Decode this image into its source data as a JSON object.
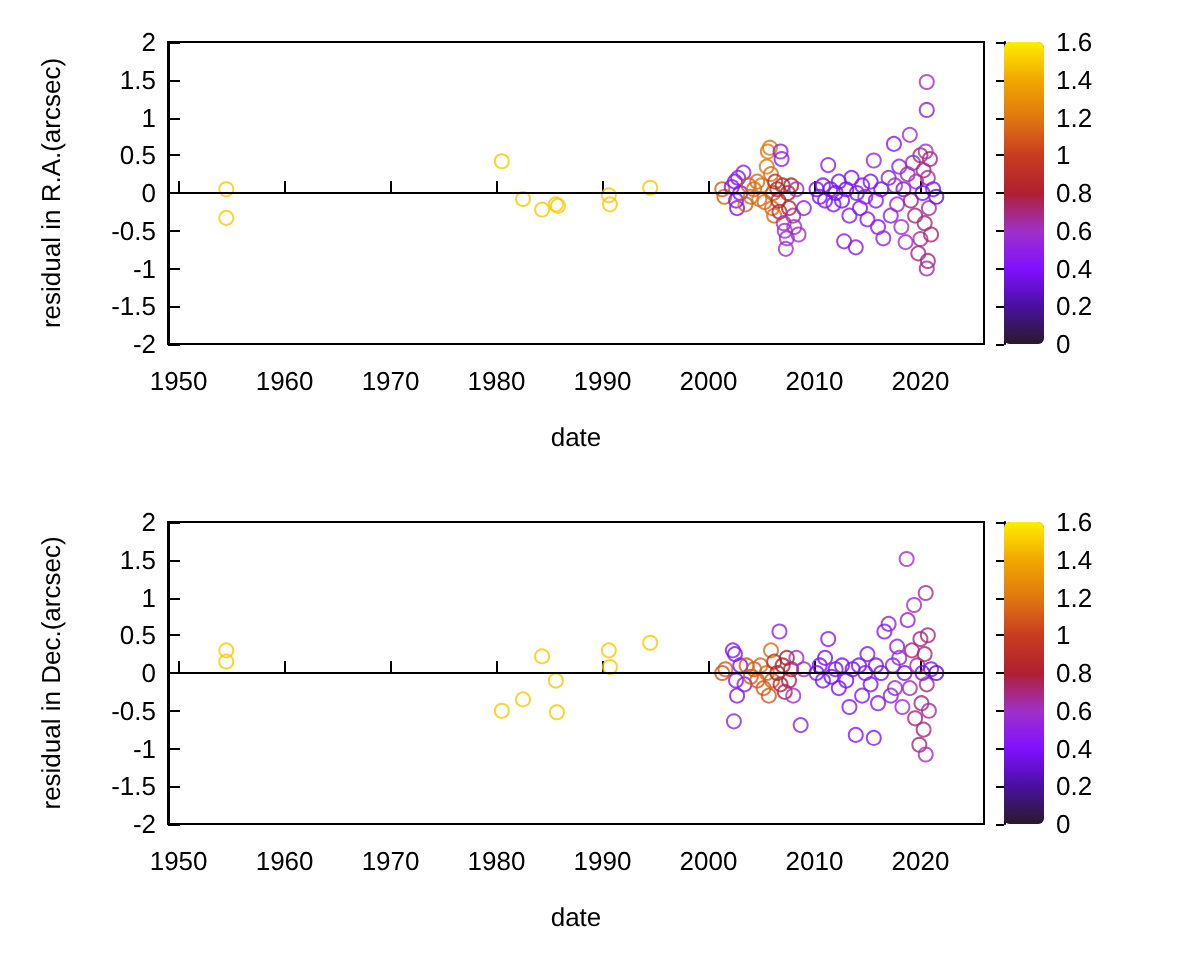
{
  "chart_data": [
    {
      "type": "scatter",
      "xlabel": "date",
      "ylabel": "residual in R.A.(arcsec)",
      "marker": "circle",
      "grid": false,
      "xlim": [
        1949,
        2026
      ],
      "xticks": [
        1950,
        1960,
        1970,
        1980,
        1990,
        2000,
        2010,
        2020
      ],
      "ylim": [
        -2,
        2
      ],
      "yticks": [
        -2,
        -1.5,
        -1,
        -0.5,
        0,
        0.5,
        1,
        1.5,
        2
      ],
      "clim": [
        0,
        1.6
      ],
      "cticks": [
        0,
        0.2,
        0.4,
        0.6,
        0.8,
        1,
        1.2,
        1.4,
        1.6
      ],
      "ref_lines": [
        {
          "axis": "y",
          "value": 0,
          "color": "#000000"
        }
      ],
      "series": [
        {
          "x": [
            1954.5,
            1954.5,
            1980.5,
            1982.5,
            1984.3,
            1985.6,
            1985.8,
            1990.6,
            1990.7,
            1994.5,
            2001.3,
            2001.5,
            2002.2,
            2002.5,
            2002.6,
            2002.7,
            2002.8,
            2003.0,
            2003.3,
            2003.5,
            2003.8,
            2004.0,
            2004.3,
            2004.6,
            2004.8,
            2005.0,
            2005.3,
            2005.5,
            2005.6,
            2005.8,
            2005.9,
            2006.0,
            2006.1,
            2006.2,
            2006.3,
            2006.5,
            2006.6,
            2006.7,
            2006.8,
            2006.9,
            2007.0,
            2007.1,
            2007.2,
            2007.3,
            2007.4,
            2007.5,
            2007.6,
            2007.8,
            2008.0,
            2008.1,
            2008.3,
            2008.5,
            2009.0,
            2010.2,
            2010.5,
            2010.8,
            2011.0,
            2011.3,
            2011.5,
            2011.8,
            2012.0,
            2012.3,
            2012.6,
            2012.8,
            2013.0,
            2013.3,
            2013.5,
            2013.9,
            2014.0,
            2014.3,
            2014.5,
            2014.8,
            2015.0,
            2015.3,
            2015.6,
            2015.8,
            2016.0,
            2016.3,
            2016.5,
            2017.0,
            2017.2,
            2017.5,
            2017.6,
            2017.8,
            2018.0,
            2018.2,
            2018.4,
            2018.6,
            2018.8,
            2019.0,
            2019.1,
            2019.3,
            2019.5,
            2019.6,
            2019.8,
            2020.0,
            2020.0,
            2020.2,
            2020.3,
            2020.4,
            2020.5,
            2020.6,
            2020.6,
            2020.6,
            2020.7,
            2020.7,
            2020.8,
            2020.9,
            2021.0,
            2021.2,
            2021.5
          ],
          "values": [
            0.05,
            -0.33,
            0.42,
            -0.08,
            -0.22,
            -0.15,
            -0.17,
            -0.03,
            -0.15,
            0.07,
            0.05,
            -0.05,
            0.08,
            0.15,
            -0.1,
            -0.2,
            0.2,
            0.0,
            0.27,
            -0.15,
            0.1,
            -0.05,
            0.05,
            0.15,
            -0.08,
            0.1,
            -0.12,
            0.35,
            0.55,
            0.6,
            0.25,
            -0.2,
            0.0,
            -0.3,
            0.15,
            0.05,
            -0.1,
            -0.25,
            0.55,
            0.45,
            0.1,
            -0.4,
            -0.5,
            -0.74,
            -0.6,
            0.0,
            -0.2,
            0.1,
            -0.3,
            -0.45,
            0.05,
            -0.55,
            -0.2,
            0.05,
            -0.05,
            0.1,
            -0.1,
            0.37,
            0.05,
            -0.15,
            0.0,
            0.15,
            -0.1,
            -0.64,
            0.05,
            -0.3,
            0.2,
            -0.72,
            0.0,
            -0.2,
            0.1,
            -0.05,
            -0.35,
            0.15,
            0.43,
            -0.1,
            -0.45,
            0.05,
            -0.6,
            0.2,
            -0.3,
            0.65,
            0.1,
            -0.15,
            0.35,
            -0.45,
            0.05,
            -0.65,
            0.25,
            0.77,
            -0.1,
            0.4,
            -0.3,
            0.15,
            -0.8,
            0.5,
            -0.61,
            0.0,
            0.3,
            -0.4,
            0.55,
            1.47,
            1.1,
            -1.0,
            -0.9,
            0.2,
            -0.2,
            0.45,
            -0.55,
            0.05,
            -0.05
          ],
          "cvalues": [
            1.5,
            1.5,
            1.5,
            1.5,
            1.5,
            1.5,
            1.5,
            1.5,
            1.5,
            1.5,
            1.1,
            1.1,
            0.45,
            0.4,
            0.4,
            0.4,
            0.45,
            0.4,
            0.5,
            1.1,
            1.1,
            1.15,
            1.15,
            1.15,
            1.15,
            1.2,
            1.15,
            1.2,
            1.2,
            1.2,
            1.15,
            1.15,
            1.1,
            1.15,
            0.9,
            0.85,
            0.85,
            0.85,
            0.5,
            0.5,
            0.85,
            0.6,
            0.6,
            0.6,
            0.6,
            0.85,
            0.85,
            0.8,
            0.65,
            0.6,
            0.6,
            0.6,
            0.5,
            0.4,
            0.4,
            0.4,
            0.4,
            0.45,
            0.35,
            0.4,
            0.35,
            0.4,
            0.4,
            0.45,
            0.35,
            0.45,
            0.4,
            0.45,
            0.4,
            0.4,
            0.45,
            0.5,
            0.45,
            0.4,
            0.55,
            0.45,
            0.45,
            0.4,
            0.5,
            0.5,
            0.5,
            0.45,
            0.6,
            0.55,
            0.5,
            0.6,
            0.4,
            0.6,
            0.65,
            0.6,
            0.7,
            0.55,
            0.7,
            0.6,
            0.7,
            0.7,
            0.65,
            0.4,
            0.7,
            0.7,
            0.6,
            0.6,
            0.5,
            0.65,
            0.7,
            0.65,
            0.65,
            0.7,
            0.7,
            0.4,
            0.3
          ]
        }
      ]
    },
    {
      "type": "scatter",
      "xlabel": "date",
      "ylabel": "residual in Dec.(arcsec)",
      "marker": "circle",
      "grid": false,
      "xlim": [
        1949,
        2026
      ],
      "xticks": [
        1950,
        1960,
        1970,
        1980,
        1990,
        2000,
        2010,
        2020
      ],
      "ylim": [
        -2,
        2
      ],
      "yticks": [
        -2,
        -1.5,
        -1,
        -0.5,
        0,
        0.5,
        1,
        1.5,
        2
      ],
      "clim": [
        0,
        1.6
      ],
      "cticks": [
        0,
        0.2,
        0.4,
        0.6,
        0.8,
        1,
        1.2,
        1.4,
        1.6
      ],
      "ref_lines": [
        {
          "axis": "y",
          "value": 0,
          "color": "#000000"
        }
      ],
      "series": [
        {
          "x": [
            1954.5,
            1954.5,
            1980.5,
            1982.5,
            1984.3,
            1985.6,
            1985.7,
            1990.6,
            1990.7,
            1994.5,
            2001.3,
            2001.6,
            2002.3,
            2002.5,
            2002.6,
            2002.7,
            2002.4,
            2003.0,
            2003.4,
            2003.6,
            2004.0,
            2004.3,
            2004.6,
            2004.9,
            2005.2,
            2005.5,
            2005.7,
            2005.9,
            2006.0,
            2006.2,
            2006.5,
            2006.7,
            2006.8,
            2007.0,
            2007.2,
            2007.4,
            2007.6,
            2007.8,
            2008.0,
            2008.3,
            2008.7,
            2009.0,
            2010.2,
            2010.5,
            2010.8,
            2011.0,
            2011.3,
            2011.6,
            2012.0,
            2012.3,
            2012.6,
            2013.0,
            2013.3,
            2013.6,
            2013.9,
            2014.2,
            2014.5,
            2014.8,
            2015.0,
            2015.3,
            2015.6,
            2015.8,
            2016.0,
            2016.3,
            2016.6,
            2017.0,
            2017.2,
            2017.4,
            2017.6,
            2017.8,
            2018.0,
            2018.3,
            2018.5,
            2018.7,
            2018.8,
            2019.0,
            2019.2,
            2019.4,
            2019.5,
            2019.7,
            2019.9,
            2020.0,
            2020.1,
            2020.2,
            2020.3,
            2020.4,
            2020.5,
            2020.5,
            2020.6,
            2020.7,
            2020.8,
            2021.0,
            2021.5
          ],
          "values": [
            0.3,
            0.15,
            -0.5,
            -0.35,
            0.22,
            -0.1,
            -0.52,
            0.3,
            0.08,
            0.4,
            0.0,
            0.05,
            0.3,
            0.25,
            -0.1,
            -0.3,
            -0.64,
            0.1,
            -0.15,
            0.1,
            -0.05,
            0.05,
            -0.1,
            0.1,
            -0.2,
            0.0,
            -0.3,
            0.3,
            -0.1,
            0.15,
            0.0,
            0.55,
            -0.15,
            0.1,
            -0.25,
            0.2,
            -0.1,
            0.05,
            -0.3,
            0.2,
            -0.69,
            0.05,
            0.0,
            0.1,
            -0.1,
            0.2,
            0.45,
            -0.05,
            0.05,
            -0.2,
            0.1,
            -0.1,
            -0.45,
            0.05,
            -0.82,
            0.1,
            -0.3,
            0.0,
            0.25,
            -0.15,
            -0.86,
            0.1,
            -0.4,
            0.0,
            0.55,
            0.65,
            -0.3,
            0.1,
            -0.2,
            0.35,
            0.2,
            -0.45,
            0.0,
            1.51,
            0.7,
            -0.2,
            0.3,
            0.9,
            -0.6,
            0.1,
            -0.95,
            0.45,
            -0.4,
            0.0,
            -0.75,
            0.25,
            1.06,
            -1.08,
            -0.15,
            0.5,
            -0.5,
            0.05,
            0.0
          ],
          "cvalues": [
            1.5,
            1.5,
            1.5,
            1.5,
            1.5,
            1.5,
            1.5,
            1.5,
            1.5,
            1.5,
            1.1,
            1.1,
            0.45,
            0.4,
            0.45,
            0.45,
            0.5,
            0.4,
            0.45,
            1.1,
            1.1,
            1.1,
            1.1,
            1.15,
            1.1,
            1.15,
            1.1,
            1.15,
            1.1,
            0.9,
            0.8,
            0.5,
            0.8,
            0.8,
            0.75,
            0.8,
            0.75,
            0.8,
            0.6,
            0.6,
            0.5,
            0.6,
            0.4,
            0.4,
            0.4,
            0.4,
            0.45,
            0.35,
            0.35,
            0.4,
            0.4,
            0.4,
            0.45,
            0.35,
            0.45,
            0.4,
            0.45,
            0.45,
            0.45,
            0.4,
            0.45,
            0.4,
            0.45,
            0.4,
            0.45,
            0.5,
            0.5,
            0.5,
            0.55,
            0.5,
            0.55,
            0.6,
            0.4,
            0.6,
            0.5,
            0.65,
            0.7,
            0.6,
            0.7,
            0.65,
            0.7,
            0.7,
            0.7,
            0.4,
            0.7,
            0.7,
            0.65,
            0.6,
            0.7,
            0.7,
            0.65,
            0.4,
            0.3
          ]
        }
      ]
    }
  ]
}
